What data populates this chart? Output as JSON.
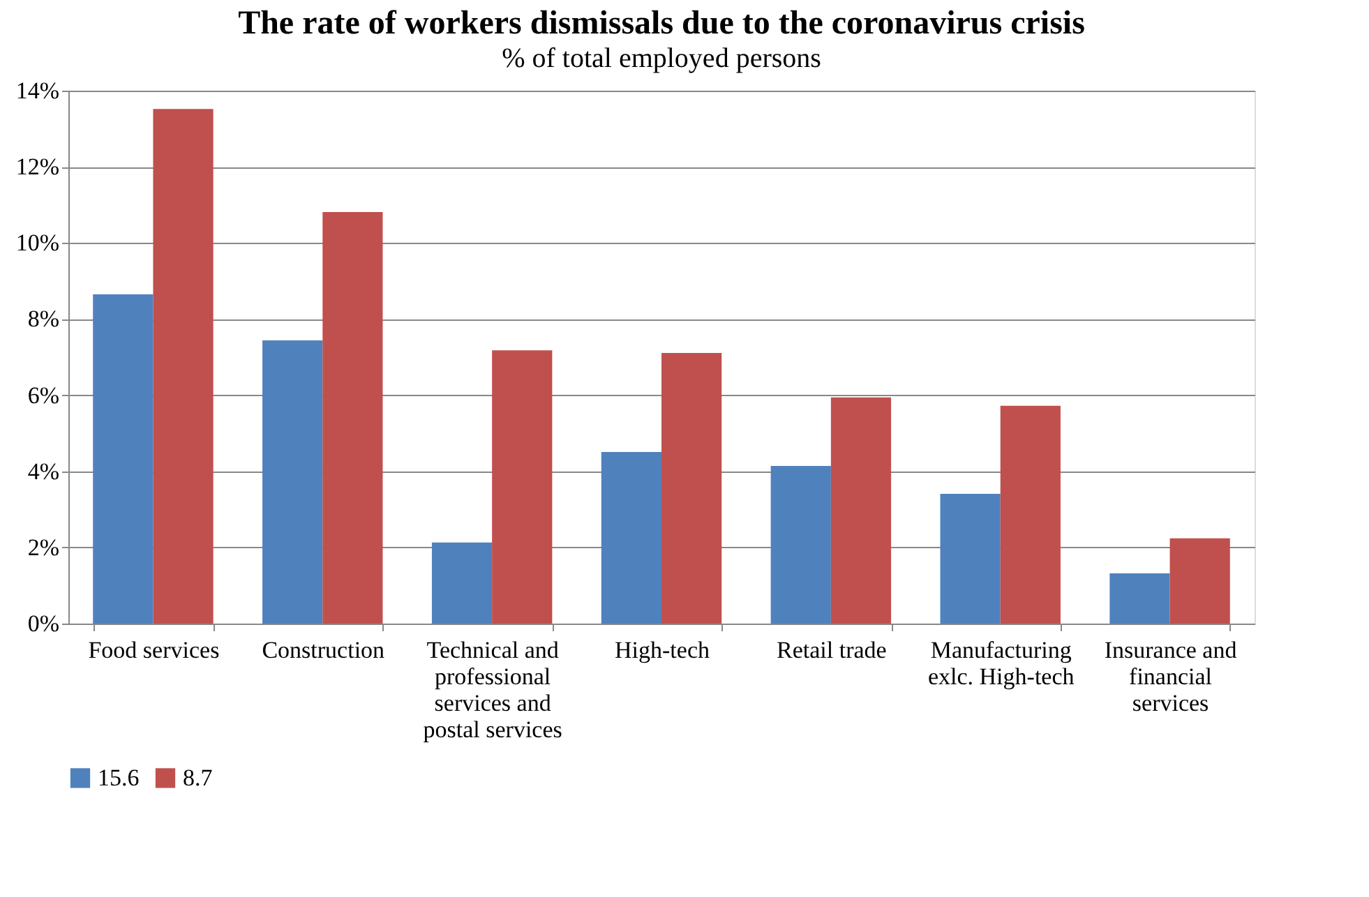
{
  "chart_data": {
    "type": "bar",
    "title": "The rate of workers  dismissals due to the coronavirus  crisis",
    "subtitle": "%  of total employed persons",
    "categories": [
      "Food services",
      "Construction",
      "Technical and professional services and postal services",
      "High-tech",
      "Retail trade",
      "Manufacturing exlc. High-tech",
      "Insurance and financial services"
    ],
    "series": [
      {
        "name": "15.6",
        "color": "#4f81bd",
        "values": [
          8.65,
          7.44,
          2.13,
          4.51,
          4.14,
          3.41,
          1.32
        ]
      },
      {
        "name": "8.7",
        "color": "#c0504d",
        "values": [
          13.52,
          10.81,
          7.18,
          7.11,
          5.94,
          5.72,
          2.24
        ]
      }
    ],
    "ylim": [
      0,
      14
    ],
    "yticks": [
      {
        "value": 0,
        "label": "0%"
      },
      {
        "value": 2,
        "label": "2%"
      },
      {
        "value": 4,
        "label": "4%"
      },
      {
        "value": 6,
        "label": "6%"
      },
      {
        "value": 8,
        "label": "8%"
      },
      {
        "value": 10,
        "label": "10%"
      },
      {
        "value": 12,
        "label": "12%"
      },
      {
        "value": 14,
        "label": "14%"
      }
    ],
    "grid": "y",
    "legend": "bottom"
  }
}
